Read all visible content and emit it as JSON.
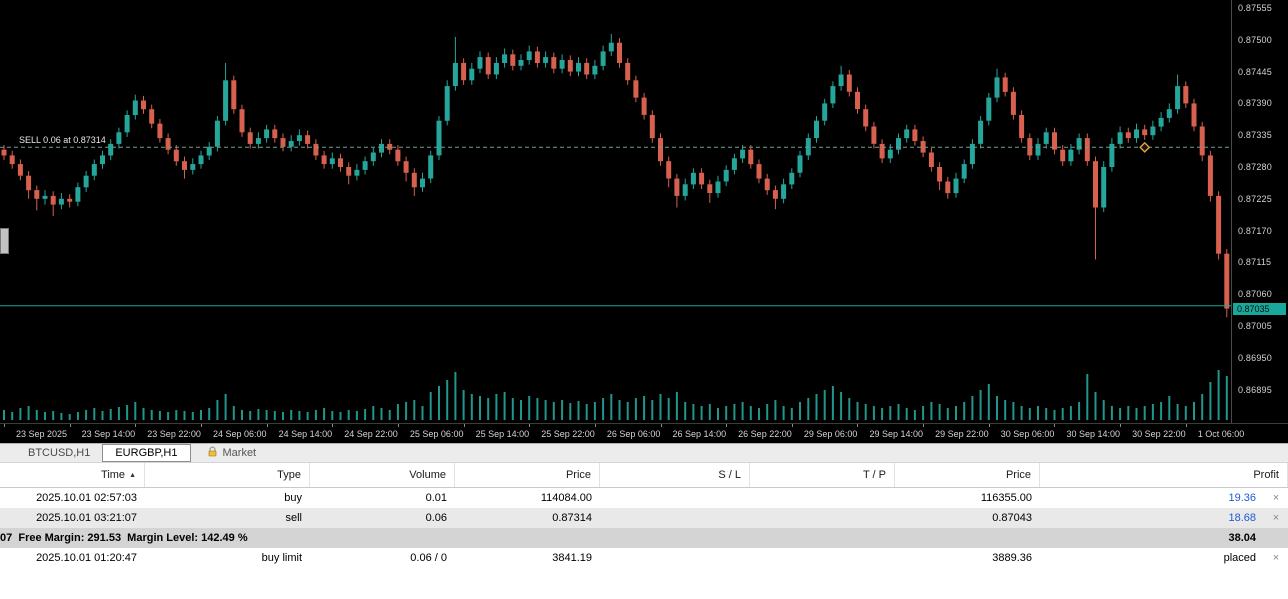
{
  "chart": {
    "sell_label": "SELL 0.06 at 0.87314",
    "sell_price": 0.87314,
    "bid_price": 0.8704,
    "price_badge": "0.87035",
    "axis_top_price": 0.87555,
    "axis_step": 0.00055,
    "axis_ticks": [
      "0.87555",
      "0.87500",
      "0.87445",
      "0.87390",
      "0.87335",
      "0.87280",
      "0.87225",
      "0.87170",
      "0.87115",
      "0.87060",
      "0.87005",
      "0.86950",
      "0.86895"
    ],
    "x_labels": [
      {
        "i": 0,
        "t": "23 Sep 2025"
      },
      {
        "i": 8,
        "t": "23 Sep 14:00"
      },
      {
        "i": 16,
        "t": "23 Sep 22:00"
      },
      {
        "i": 24,
        "t": "24 Sep 06:00"
      },
      {
        "i": 32,
        "t": "24 Sep 14:00"
      },
      {
        "i": 40,
        "t": "24 Sep 22:00"
      },
      {
        "i": 48,
        "t": "25 Sep 06:00"
      },
      {
        "i": 56,
        "t": "25 Sep 14:00"
      },
      {
        "i": 64,
        "t": "25 Sep 22:00"
      },
      {
        "i": 72,
        "t": "26 Sep 06:00"
      },
      {
        "i": 80,
        "t": "26 Sep 14:00"
      },
      {
        "i": 88,
        "t": "26 Sep 22:00"
      },
      {
        "i": 96,
        "t": "29 Sep 06:00"
      },
      {
        "i": 104,
        "t": "29 Sep 14:00"
      },
      {
        "i": 112,
        "t": "29 Sep 22:00"
      },
      {
        "i": 120,
        "t": "30 Sep 06:00"
      },
      {
        "i": 128,
        "t": "30 Sep 14:00"
      },
      {
        "i": 136,
        "t": "30 Sep 22:00"
      },
      {
        "i": 144,
        "t": "1 Oct 06:00"
      }
    ],
    "marker_index": 139,
    "marker_price": 0.87314,
    "colors": {
      "up": "#26a69a",
      "down": "#d8604f",
      "volume": "#26a69a",
      "bid_line": "#1aa89c",
      "sell_line": "#6f9f8f",
      "badge_bg": "#1aa89c",
      "marker": "#e8a33d"
    }
  },
  "chart_data": {
    "type": "candlestick",
    "title": "EURGBP,H1",
    "symbol": "EURGBP",
    "timeframe": "H1",
    "price_range": [
      0.86895,
      0.87555
    ],
    "candles": [
      [
        0.8731,
        0.87318,
        0.87292,
        0.873
      ],
      [
        0.873,
        0.87308,
        0.87277,
        0.87285
      ],
      [
        0.87285,
        0.87293,
        0.87257,
        0.87265
      ],
      [
        0.87265,
        0.87273,
        0.87225,
        0.8724
      ],
      [
        0.8724,
        0.87248,
        0.87205,
        0.87225
      ],
      [
        0.87225,
        0.8724,
        0.87215,
        0.8723
      ],
      [
        0.8723,
        0.87238,
        0.87195,
        0.87215
      ],
      [
        0.87215,
        0.87235,
        0.87207,
        0.87225
      ],
      [
        0.87225,
        0.87233,
        0.8721,
        0.8722
      ],
      [
        0.8722,
        0.87253,
        0.87212,
        0.87245
      ],
      [
        0.87245,
        0.87273,
        0.87237,
        0.87265
      ],
      [
        0.87265,
        0.87293,
        0.87257,
        0.87285
      ],
      [
        0.87285,
        0.87308,
        0.87277,
        0.873
      ],
      [
        0.873,
        0.87328,
        0.87292,
        0.8732
      ],
      [
        0.8732,
        0.87348,
        0.87312,
        0.8734
      ],
      [
        0.8734,
        0.87378,
        0.87332,
        0.8737
      ],
      [
        0.8737,
        0.87405,
        0.87362,
        0.87395
      ],
      [
        0.87395,
        0.87403,
        0.87372,
        0.8738
      ],
      [
        0.8738,
        0.87388,
        0.87347,
        0.87355
      ],
      [
        0.87355,
        0.87363,
        0.87322,
        0.8733
      ],
      [
        0.8733,
        0.87338,
        0.87302,
        0.8731
      ],
      [
        0.8731,
        0.87318,
        0.87282,
        0.8729
      ],
      [
        0.8729,
        0.87298,
        0.8726,
        0.87275
      ],
      [
        0.87275,
        0.87295,
        0.87267,
        0.87285
      ],
      [
        0.87285,
        0.87308,
        0.87277,
        0.873
      ],
      [
        0.873,
        0.87323,
        0.87292,
        0.87315
      ],
      [
        0.87315,
        0.87368,
        0.87307,
        0.8736
      ],
      [
        0.8736,
        0.8746,
        0.87352,
        0.8743
      ],
      [
        0.8743,
        0.87438,
        0.87372,
        0.8738
      ],
      [
        0.8738,
        0.87388,
        0.87332,
        0.8734
      ],
      [
        0.8734,
        0.87348,
        0.87312,
        0.8732
      ],
      [
        0.8732,
        0.8734,
        0.87312,
        0.8733
      ],
      [
        0.8733,
        0.87353,
        0.87322,
        0.87345
      ],
      [
        0.87345,
        0.87353,
        0.87322,
        0.8733
      ],
      [
        0.8733,
        0.87338,
        0.87307,
        0.87315
      ],
      [
        0.87315,
        0.87335,
        0.87307,
        0.87325
      ],
      [
        0.87325,
        0.87345,
        0.87317,
        0.87335
      ],
      [
        0.87335,
        0.87343,
        0.87312,
        0.8732
      ],
      [
        0.8732,
        0.87328,
        0.87292,
        0.873
      ],
      [
        0.873,
        0.87308,
        0.87277,
        0.87285
      ],
      [
        0.87285,
        0.87305,
        0.87277,
        0.87295
      ],
      [
        0.87295,
        0.87303,
        0.87272,
        0.8728
      ],
      [
        0.8728,
        0.87288,
        0.8725,
        0.87265
      ],
      [
        0.87265,
        0.87285,
        0.87257,
        0.87275
      ],
      [
        0.87275,
        0.87298,
        0.87267,
        0.8729
      ],
      [
        0.8729,
        0.87313,
        0.87282,
        0.87305
      ],
      [
        0.87305,
        0.87328,
        0.87297,
        0.8732
      ],
      [
        0.8732,
        0.87328,
        0.87302,
        0.8731
      ],
      [
        0.8731,
        0.87318,
        0.87282,
        0.8729
      ],
      [
        0.8729,
        0.87298,
        0.87255,
        0.8727
      ],
      [
        0.8727,
        0.87278,
        0.8723,
        0.87245
      ],
      [
        0.87245,
        0.8727,
        0.87237,
        0.8726
      ],
      [
        0.8726,
        0.87308,
        0.87252,
        0.873
      ],
      [
        0.873,
        0.87368,
        0.87292,
        0.8736
      ],
      [
        0.8736,
        0.8743,
        0.87352,
        0.8742
      ],
      [
        0.8742,
        0.87505,
        0.87412,
        0.8746
      ],
      [
        0.8746,
        0.87468,
        0.87422,
        0.8743
      ],
      [
        0.8743,
        0.8746,
        0.87422,
        0.8745
      ],
      [
        0.8745,
        0.8748,
        0.87442,
        0.8747
      ],
      [
        0.8747,
        0.87478,
        0.87432,
        0.8744
      ],
      [
        0.8744,
        0.8747,
        0.87432,
        0.8746
      ],
      [
        0.8746,
        0.87485,
        0.87452,
        0.87475
      ],
      [
        0.87475,
        0.87483,
        0.87447,
        0.87455
      ],
      [
        0.87455,
        0.87475,
        0.87447,
        0.87465
      ],
      [
        0.87465,
        0.8749,
        0.87457,
        0.8748
      ],
      [
        0.8748,
        0.87488,
        0.87452,
        0.8746
      ],
      [
        0.8746,
        0.8748,
        0.87452,
        0.8747
      ],
      [
        0.8747,
        0.87478,
        0.87442,
        0.8745
      ],
      [
        0.8745,
        0.87475,
        0.87442,
        0.87465
      ],
      [
        0.87465,
        0.87473,
        0.87437,
        0.87445
      ],
      [
        0.87445,
        0.8747,
        0.87437,
        0.8746
      ],
      [
        0.8746,
        0.87468,
        0.87432,
        0.8744
      ],
      [
        0.8744,
        0.87465,
        0.87432,
        0.87455
      ],
      [
        0.87455,
        0.8749,
        0.87447,
        0.8748
      ],
      [
        0.8748,
        0.8751,
        0.87472,
        0.87495
      ],
      [
        0.87495,
        0.87503,
        0.87452,
        0.8746
      ],
      [
        0.8746,
        0.87468,
        0.87422,
        0.8743
      ],
      [
        0.8743,
        0.87438,
        0.87392,
        0.874
      ],
      [
        0.874,
        0.87408,
        0.87362,
        0.8737
      ],
      [
        0.8737,
        0.87378,
        0.87322,
        0.8733
      ],
      [
        0.8733,
        0.87338,
        0.87282,
        0.8729
      ],
      [
        0.8729,
        0.87298,
        0.87245,
        0.8726
      ],
      [
        0.8726,
        0.87268,
        0.8721,
        0.8723
      ],
      [
        0.8723,
        0.8726,
        0.87222,
        0.8725
      ],
      [
        0.8725,
        0.87278,
        0.87242,
        0.8727
      ],
      [
        0.8727,
        0.87278,
        0.87242,
        0.8725
      ],
      [
        0.8725,
        0.87258,
        0.87218,
        0.87235
      ],
      [
        0.87235,
        0.87265,
        0.87227,
        0.87255
      ],
      [
        0.87255,
        0.87283,
        0.87247,
        0.87275
      ],
      [
        0.87275,
        0.87303,
        0.87267,
        0.87295
      ],
      [
        0.87295,
        0.87318,
        0.87287,
        0.8731
      ],
      [
        0.8731,
        0.87318,
        0.87277,
        0.87285
      ],
      [
        0.87285,
        0.87293,
        0.87252,
        0.8726
      ],
      [
        0.8726,
        0.87268,
        0.87232,
        0.8724
      ],
      [
        0.8724,
        0.87248,
        0.87207,
        0.87225
      ],
      [
        0.87225,
        0.8726,
        0.87217,
        0.8725
      ],
      [
        0.8725,
        0.87278,
        0.87242,
        0.8727
      ],
      [
        0.8727,
        0.87308,
        0.87262,
        0.873
      ],
      [
        0.873,
        0.87338,
        0.87292,
        0.8733
      ],
      [
        0.8733,
        0.87368,
        0.87322,
        0.8736
      ],
      [
        0.8736,
        0.87398,
        0.87352,
        0.8739
      ],
      [
        0.8739,
        0.87428,
        0.87382,
        0.8742
      ],
      [
        0.8742,
        0.87455,
        0.87412,
        0.8744
      ],
      [
        0.8744,
        0.87448,
        0.87402,
        0.8741
      ],
      [
        0.8741,
        0.87418,
        0.87372,
        0.8738
      ],
      [
        0.8738,
        0.87388,
        0.87342,
        0.8735
      ],
      [
        0.8735,
        0.87358,
        0.87312,
        0.8732
      ],
      [
        0.8732,
        0.87328,
        0.87287,
        0.87295
      ],
      [
        0.87295,
        0.8732,
        0.87287,
        0.8731
      ],
      [
        0.8731,
        0.87338,
        0.87302,
        0.8733
      ],
      [
        0.8733,
        0.87353,
        0.87322,
        0.87345
      ],
      [
        0.87345,
        0.87353,
        0.87317,
        0.87325
      ],
      [
        0.87325,
        0.87333,
        0.87297,
        0.87305
      ],
      [
        0.87305,
        0.87313,
        0.87272,
        0.8728
      ],
      [
        0.8728,
        0.87288,
        0.8724,
        0.87255
      ],
      [
        0.87255,
        0.87263,
        0.87225,
        0.87235
      ],
      [
        0.87235,
        0.8727,
        0.87227,
        0.8726
      ],
      [
        0.8726,
        0.87293,
        0.87252,
        0.87285
      ],
      [
        0.87285,
        0.87328,
        0.87277,
        0.8732
      ],
      [
        0.8732,
        0.87368,
        0.87312,
        0.8736
      ],
      [
        0.8736,
        0.87408,
        0.87352,
        0.874
      ],
      [
        0.874,
        0.8745,
        0.87392,
        0.87435
      ],
      [
        0.87435,
        0.87443,
        0.87402,
        0.8741
      ],
      [
        0.8741,
        0.87418,
        0.87362,
        0.8737
      ],
      [
        0.8737,
        0.87378,
        0.87322,
        0.8733
      ],
      [
        0.8733,
        0.87338,
        0.87292,
        0.873
      ],
      [
        0.873,
        0.8733,
        0.87292,
        0.8732
      ],
      [
        0.8732,
        0.87348,
        0.87312,
        0.8734
      ],
      [
        0.8734,
        0.87348,
        0.87302,
        0.8731
      ],
      [
        0.8731,
        0.87318,
        0.87282,
        0.8729
      ],
      [
        0.8729,
        0.8732,
        0.87282,
        0.8731
      ],
      [
        0.8731,
        0.87338,
        0.87302,
        0.8733
      ],
      [
        0.8733,
        0.87338,
        0.87282,
        0.8729
      ],
      [
        0.8729,
        0.87298,
        0.8712,
        0.8721
      ],
      [
        0.8721,
        0.8729,
        0.87202,
        0.8728
      ],
      [
        0.8728,
        0.8733,
        0.87272,
        0.8732
      ],
      [
        0.8732,
        0.8735,
        0.87312,
        0.8734
      ],
      [
        0.8734,
        0.87348,
        0.87322,
        0.8733
      ],
      [
        0.8733,
        0.87355,
        0.87322,
        0.87345
      ],
      [
        0.87345,
        0.87353,
        0.87327,
        0.87335
      ],
      [
        0.87335,
        0.8736,
        0.87327,
        0.8735
      ],
      [
        0.8735,
        0.87375,
        0.87342,
        0.87365
      ],
      [
        0.87365,
        0.8739,
        0.87357,
        0.8738
      ],
      [
        0.8738,
        0.8744,
        0.87372,
        0.8742
      ],
      [
        0.8742,
        0.87428,
        0.87382,
        0.8739
      ],
      [
        0.8739,
        0.87398,
        0.87342,
        0.8735
      ],
      [
        0.8735,
        0.87358,
        0.8729,
        0.873
      ],
      [
        0.873,
        0.87308,
        0.8722,
        0.8723
      ],
      [
        0.8723,
        0.87238,
        0.8712,
        0.8713
      ],
      [
        0.8713,
        0.87138,
        0.8702,
        0.87035
      ]
    ],
    "volumes": [
      10,
      8,
      12,
      14,
      10,
      8,
      9,
      7,
      6,
      8,
      10,
      12,
      9,
      11,
      13,
      15,
      18,
      12,
      10,
      9,
      8,
      10,
      9,
      8,
      10,
      12,
      20,
      26,
      14,
      10,
      9,
      11,
      10,
      9,
      8,
      10,
      9,
      8,
      10,
      12,
      9,
      8,
      10,
      9,
      11,
      14,
      12,
      10,
      16,
      18,
      20,
      14,
      28,
      34,
      40,
      48,
      30,
      26,
      24,
      22,
      26,
      28,
      22,
      20,
      24,
      22,
      20,
      18,
      20,
      17,
      19,
      16,
      18,
      22,
      26,
      20,
      18,
      22,
      24,
      20,
      26,
      22,
      28,
      18,
      16,
      14,
      16,
      12,
      14,
      16,
      18,
      14,
      12,
      16,
      20,
      14,
      12,
      18,
      22,
      26,
      30,
      34,
      28,
      22,
      18,
      16,
      14,
      12,
      14,
      16,
      12,
      10,
      14,
      18,
      16,
      12,
      14,
      18,
      24,
      30,
      36,
      24,
      20,
      18,
      14,
      12,
      14,
      12,
      10,
      12,
      14,
      18,
      46,
      28,
      20,
      14,
      12,
      14,
      12,
      14,
      16,
      18,
      24,
      16,
      14,
      18,
      26,
      38,
      50,
      44
    ]
  },
  "tabs": {
    "items": [
      {
        "label": "BTCUSD,H1"
      },
      {
        "label": "EURGBP,H1"
      }
    ],
    "market_label": "Market"
  },
  "terminal": {
    "header": {
      "time": "Time",
      "sort_icon": "▲",
      "type": "Type",
      "volume": "Volume",
      "price": "Price",
      "sl": "S / L",
      "tp": "T / P",
      "price2": "Price",
      "profit": "Profit"
    },
    "rows": [
      {
        "time": "2025.10.01 02:57:03",
        "type": "buy",
        "volume": "0.01",
        "price": "114084.00",
        "sl": "",
        "tp": "",
        "price2": "116355.00",
        "profit": "19.36",
        "close": "×"
      },
      {
        "time": "2025.10.01 03:21:07",
        "type": "sell",
        "volume": "0.06",
        "price": "0.87314",
        "sl": "",
        "tp": "",
        "price2": "0.87043",
        "profit": "18.68",
        "close": "×"
      }
    ],
    "summary": {
      "text": "07  Free Margin: 291.53  Margin Level: 142.49 %",
      "profit": "38.04"
    },
    "pending": {
      "time": "2025.10.01 01:20:47",
      "type": "buy limit",
      "volume": "0.06 / 0",
      "price": "3841.19",
      "sl": "",
      "tp": "",
      "price2": "3889.36",
      "profit": "placed",
      "close": "×"
    }
  }
}
